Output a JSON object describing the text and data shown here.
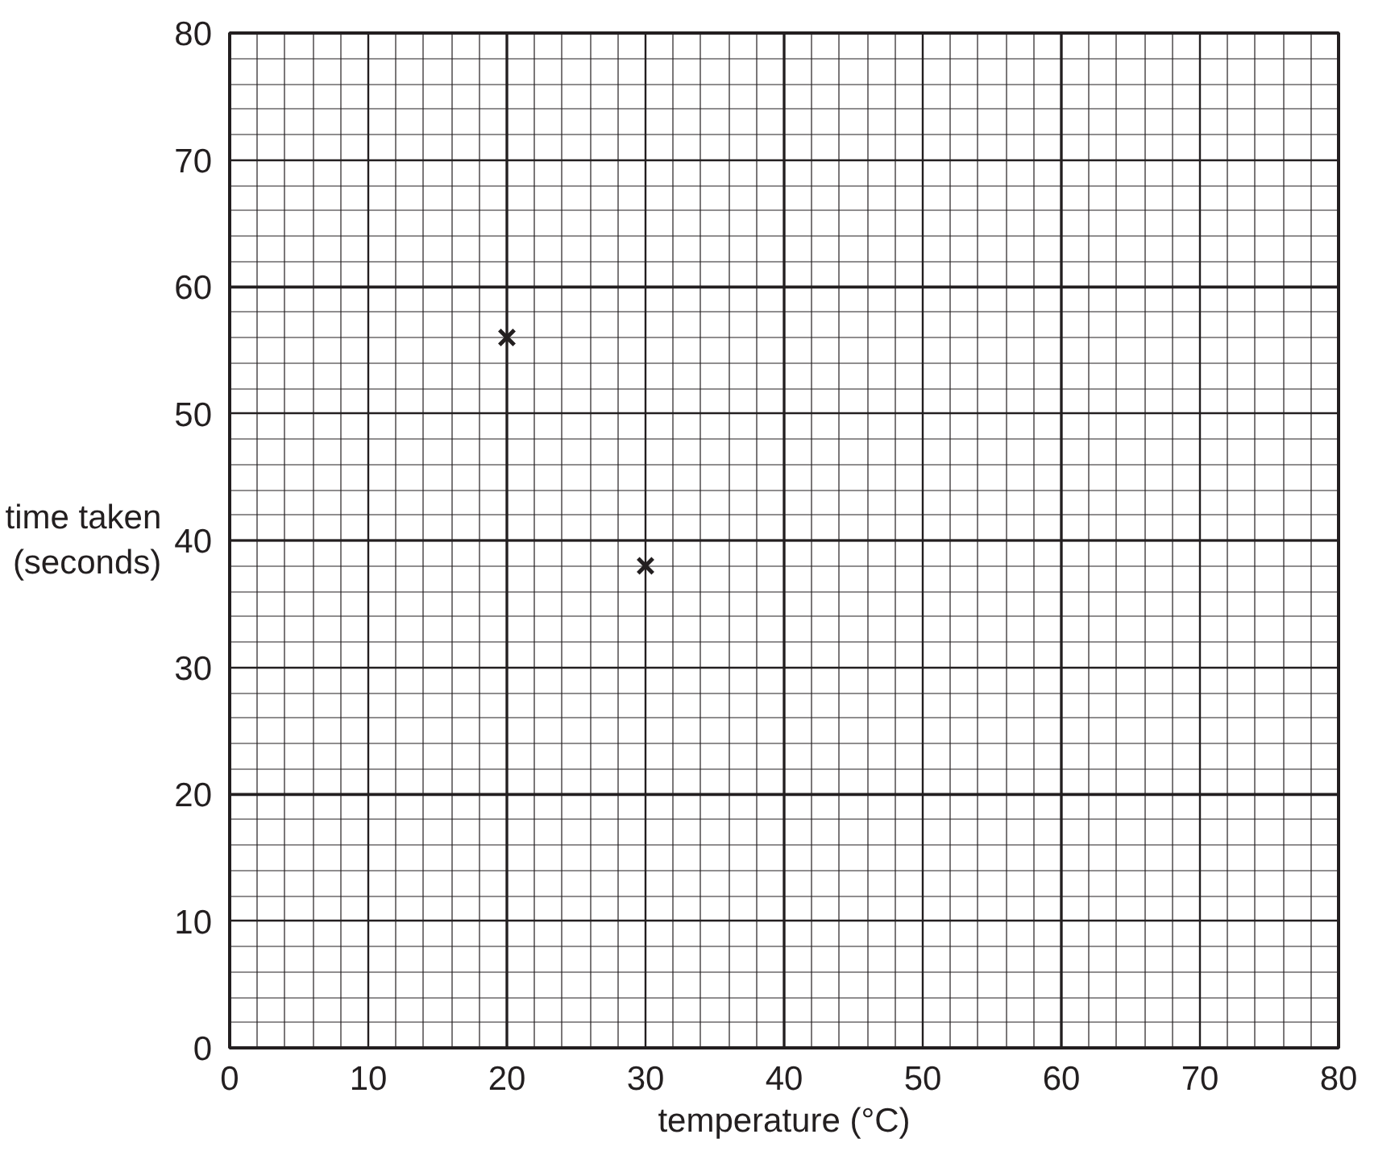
{
  "chart_data": {
    "type": "scatter",
    "xlabel": "temperature (°C)",
    "ylabel": "time taken\n(seconds)",
    "x": [
      20,
      30
    ],
    "values": [
      56,
      38
    ],
    "color": "#231f20",
    "marker": "cross",
    "xlim": [
      0,
      80
    ],
    "ylim": [
      0,
      80
    ],
    "xticks": [
      0,
      10,
      20,
      30,
      40,
      50,
      60,
      70,
      80
    ],
    "yticks": [
      0,
      10,
      20,
      30,
      40,
      50,
      60,
      70,
      80
    ],
    "grid": true
  }
}
